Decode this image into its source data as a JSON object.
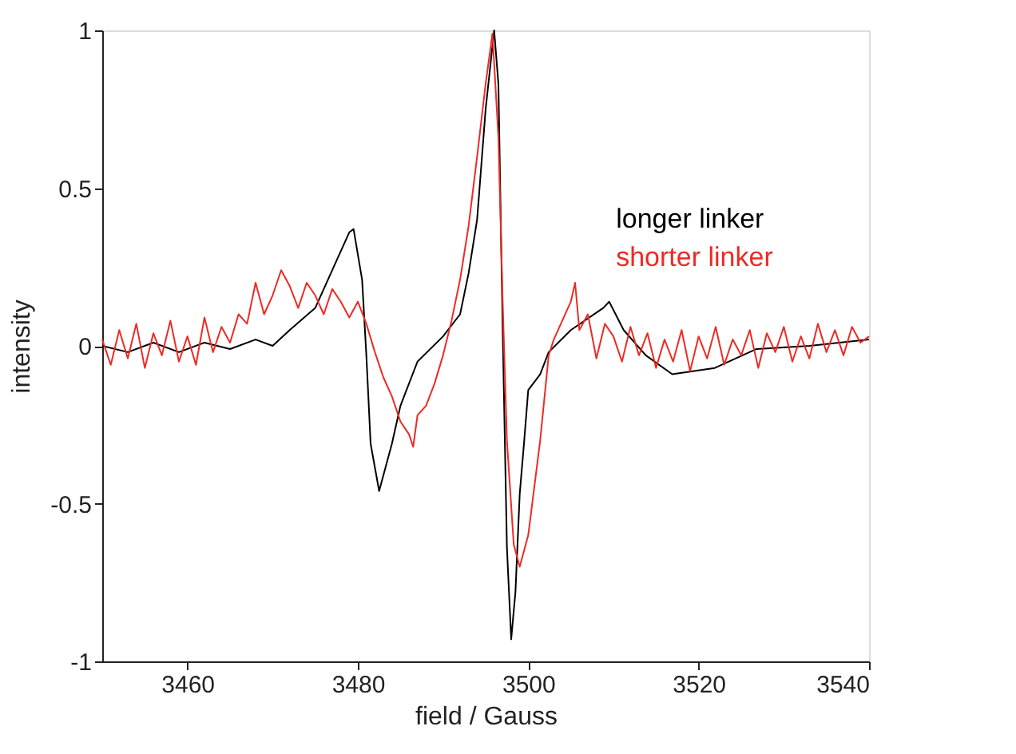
{
  "chart_data": {
    "type": "line",
    "xlabel": "field / Gauss",
    "ylabel": "intensity",
    "xlim": [
      3450,
      3540
    ],
    "xticks": [
      3460,
      3480,
      3500,
      3520,
      3540
    ],
    "ylim": [
      -1,
      1
    ],
    "yticks": [
      -1,
      -0.5,
      0,
      0.5,
      1
    ],
    "grid": false,
    "legend": "right",
    "marker": "none",
    "line_style": "solid",
    "series": [
      {
        "name": "longer linker",
        "color": "#000000",
        "x": [
          3450,
          3453,
          3456,
          3459,
          3462,
          3465,
          3468,
          3470,
          3472,
          3475,
          3477,
          3479,
          3479.5,
          3480.5,
          3481,
          3481.5,
          3482.5,
          3484,
          3485,
          3487,
          3490,
          3492,
          3493,
          3494,
          3495,
          3496,
          3496.5,
          3497,
          3497.5,
          3498,
          3498.5,
          3499,
          3499.5,
          3500,
          3501.4,
          3502.4,
          3505,
          3508.8,
          3509.5,
          3511.2,
          3513.8,
          3516.9,
          3521.9,
          3526.8,
          3533,
          3540
        ],
        "values": [
          0,
          -0.02,
          0.01,
          -0.02,
          0.01,
          -0.01,
          0.02,
          0,
          0.05,
          0.12,
          0.24,
          0.36,
          0.37,
          0.21,
          -0.03,
          -0.31,
          -0.46,
          -0.31,
          -0.19,
          -0.05,
          0.03,
          0.1,
          0.23,
          0.4,
          0.75,
          1.0,
          0.83,
          0.05,
          -0.64,
          -0.93,
          -0.78,
          -0.47,
          -0.31,
          -0.14,
          -0.09,
          -0.02,
          0.05,
          0.12,
          0.14,
          0.05,
          -0.03,
          -0.09,
          -0.07,
          -0.01,
          0,
          0.02
        ]
      },
      {
        "name": "shorter linker",
        "color": "#ee2a24",
        "x": [
          3450,
          3451,
          3452,
          3453,
          3454,
          3455,
          3456,
          3457,
          3458,
          3459,
          3460,
          3461,
          3462,
          3463,
          3464,
          3465,
          3466,
          3467,
          3468,
          3469,
          3470,
          3471,
          3472,
          3473,
          3474,
          3475,
          3476,
          3477,
          3478,
          3479,
          3480,
          3481,
          3482,
          3483,
          3484,
          3485,
          3486,
          3486.5,
          3487,
          3488,
          3489,
          3490,
          3491,
          3492,
          3493,
          3493.5,
          3494,
          3495,
          3495.8,
          3496.5,
          3497,
          3497.5,
          3498.3,
          3499,
          3500,
          3501.4,
          3502.4,
          3503,
          3504,
          3505,
          3505.5,
          3506,
          3507,
          3508,
          3509,
          3510,
          3511,
          3512,
          3513,
          3514,
          3515,
          3516,
          3517,
          3518,
          3519,
          3520,
          3521,
          3522,
          3523,
          3524,
          3525,
          3526,
          3527,
          3528,
          3529,
          3530,
          3531,
          3532,
          3533,
          3534,
          3535,
          3536,
          3537,
          3538,
          3539,
          3540
        ],
        "values": [
          0.02,
          -0.06,
          0.05,
          -0.04,
          0.07,
          -0.07,
          0.04,
          -0.03,
          0.08,
          -0.05,
          0.03,
          -0.06,
          0.09,
          -0.02,
          0.06,
          0.01,
          0.1,
          0.07,
          0.2,
          0.1,
          0.16,
          0.24,
          0.19,
          0.12,
          0.2,
          0.16,
          0.1,
          0.18,
          0.14,
          0.09,
          0.14,
          0.07,
          -0.02,
          -0.1,
          -0.16,
          -0.24,
          -0.28,
          -0.32,
          -0.22,
          -0.19,
          -0.12,
          -0.03,
          0.08,
          0.21,
          0.38,
          0.49,
          0.6,
          0.83,
          0.99,
          0.66,
          0.14,
          -0.3,
          -0.63,
          -0.7,
          -0.6,
          -0.3,
          -0.03,
          0.02,
          0.08,
          0.14,
          0.2,
          0.05,
          0.1,
          -0.04,
          0.07,
          0.03,
          -0.05,
          0.06,
          -0.03,
          0.04,
          -0.07,
          0.02,
          -0.05,
          0.05,
          -0.08,
          0.03,
          -0.04,
          0.06,
          -0.06,
          0.02,
          -0.03,
          0.05,
          -0.07,
          0.04,
          -0.02,
          0.06,
          -0.05,
          0.03,
          -0.04,
          0.07,
          -0.02,
          0.05,
          -0.03,
          0.06,
          0.01,
          0.03
        ]
      }
    ]
  }
}
